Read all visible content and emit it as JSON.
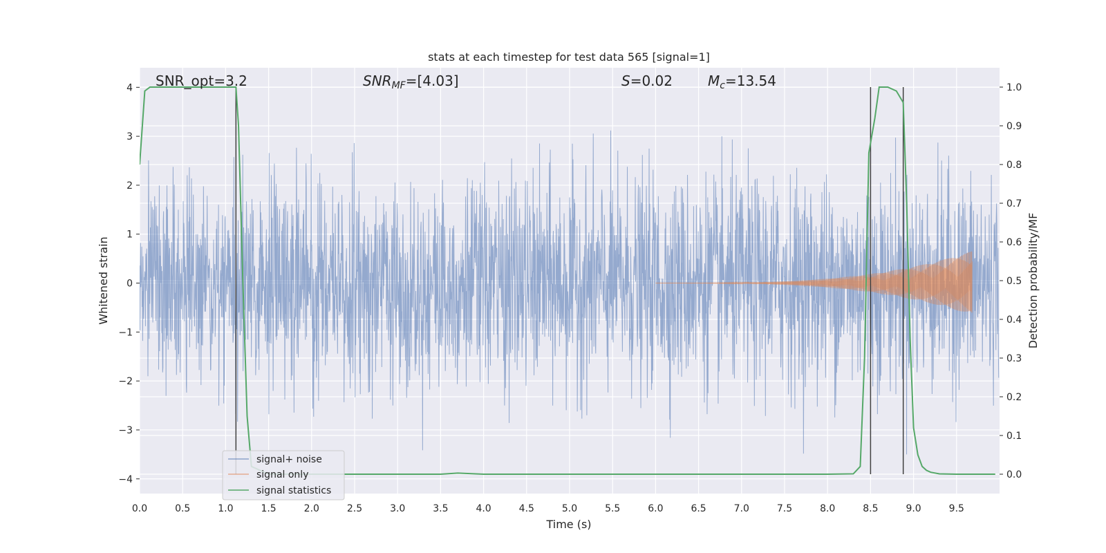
{
  "chart_data": {
    "type": "line",
    "title": "stats at each timestep for test data 565 [signal=1]",
    "xlabel": "Time (s)",
    "ylabel": "Whitened strain",
    "y2label": "Detection probability/MF",
    "xlim": [
      0,
      10
    ],
    "ylim": [
      -4.3,
      4.4
    ],
    "y2lim": [
      -0.05,
      1.05
    ],
    "xticks": [
      "0.0",
      "0.5",
      "1.0",
      "1.5",
      "2.0",
      "2.5",
      "3.0",
      "3.5",
      "4.0",
      "4.5",
      "5.0",
      "5.5",
      "6.0",
      "6.5",
      "7.0",
      "7.5",
      "8.0",
      "8.5",
      "9.0",
      "9.5"
    ],
    "yticks": [
      "4",
      "3",
      "2",
      "1",
      "0",
      "−1",
      "−2",
      "−3",
      "−4"
    ],
    "y2ticks": [
      "1.0",
      "0.9",
      "0.8",
      "0.7",
      "0.6",
      "0.5",
      "0.4",
      "0.3",
      "0.2",
      "0.1",
      "0.0"
    ],
    "grid": true,
    "legend_position": "lower-left",
    "annotations": {
      "snr_opt": "SNR_opt=3.2",
      "snr_mf_sym": "SNR",
      "snr_mf_sub": "MF",
      "snr_mf_val": "=[4.03]",
      "s_sym": "S",
      "s_val": "=0.02",
      "mc_sym": "M",
      "mc_sub": "c",
      "mc_val": "=13.54"
    },
    "vlines_x": [
      1.12,
      8.5,
      8.88
    ],
    "series": [
      {
        "name": "signal+ noise",
        "axis": "left",
        "color": "#4c72b0",
        "kind": "noise",
        "amplitude_std": 1.05,
        "envelope_max": [
          3.5,
          -3.5
        ]
      },
      {
        "name": "signal only",
        "axis": "left",
        "color": "#dd8452",
        "kind": "chirp",
        "start_x": 6.0,
        "end_x": 9.68,
        "peak_amplitude": 0.65
      },
      {
        "name": "signal statistics",
        "axis": "right",
        "color": "#55a868",
        "x": [
          0.0,
          0.06,
          0.12,
          0.5,
          1.0,
          1.12,
          1.15,
          1.2,
          1.25,
          1.3,
          1.5,
          2.0,
          2.5,
          3.0,
          3.5,
          3.7,
          4.0,
          4.5,
          5.0,
          5.5,
          6.0,
          6.5,
          7.0,
          7.5,
          8.0,
          8.3,
          8.38,
          8.43,
          8.48,
          8.55,
          8.6,
          8.7,
          8.8,
          8.88,
          8.92,
          8.96,
          9.0,
          9.05,
          9.1,
          9.15,
          9.2,
          9.3,
          9.5,
          9.95
        ],
        "y": [
          0.8,
          0.99,
          1.0,
          1.0,
          1.0,
          1.0,
          0.9,
          0.5,
          0.15,
          0.02,
          0.0,
          0.0,
          0.0,
          0.0,
          0.0,
          0.003,
          0.0,
          0.0,
          0.0,
          0.0,
          0.0,
          0.0,
          0.0,
          0.0,
          0.0,
          0.001,
          0.02,
          0.3,
          0.83,
          0.92,
          1.0,
          1.0,
          0.99,
          0.96,
          0.7,
          0.35,
          0.12,
          0.05,
          0.02,
          0.01,
          0.005,
          0.001,
          0.0,
          0.0
        ]
      }
    ]
  }
}
